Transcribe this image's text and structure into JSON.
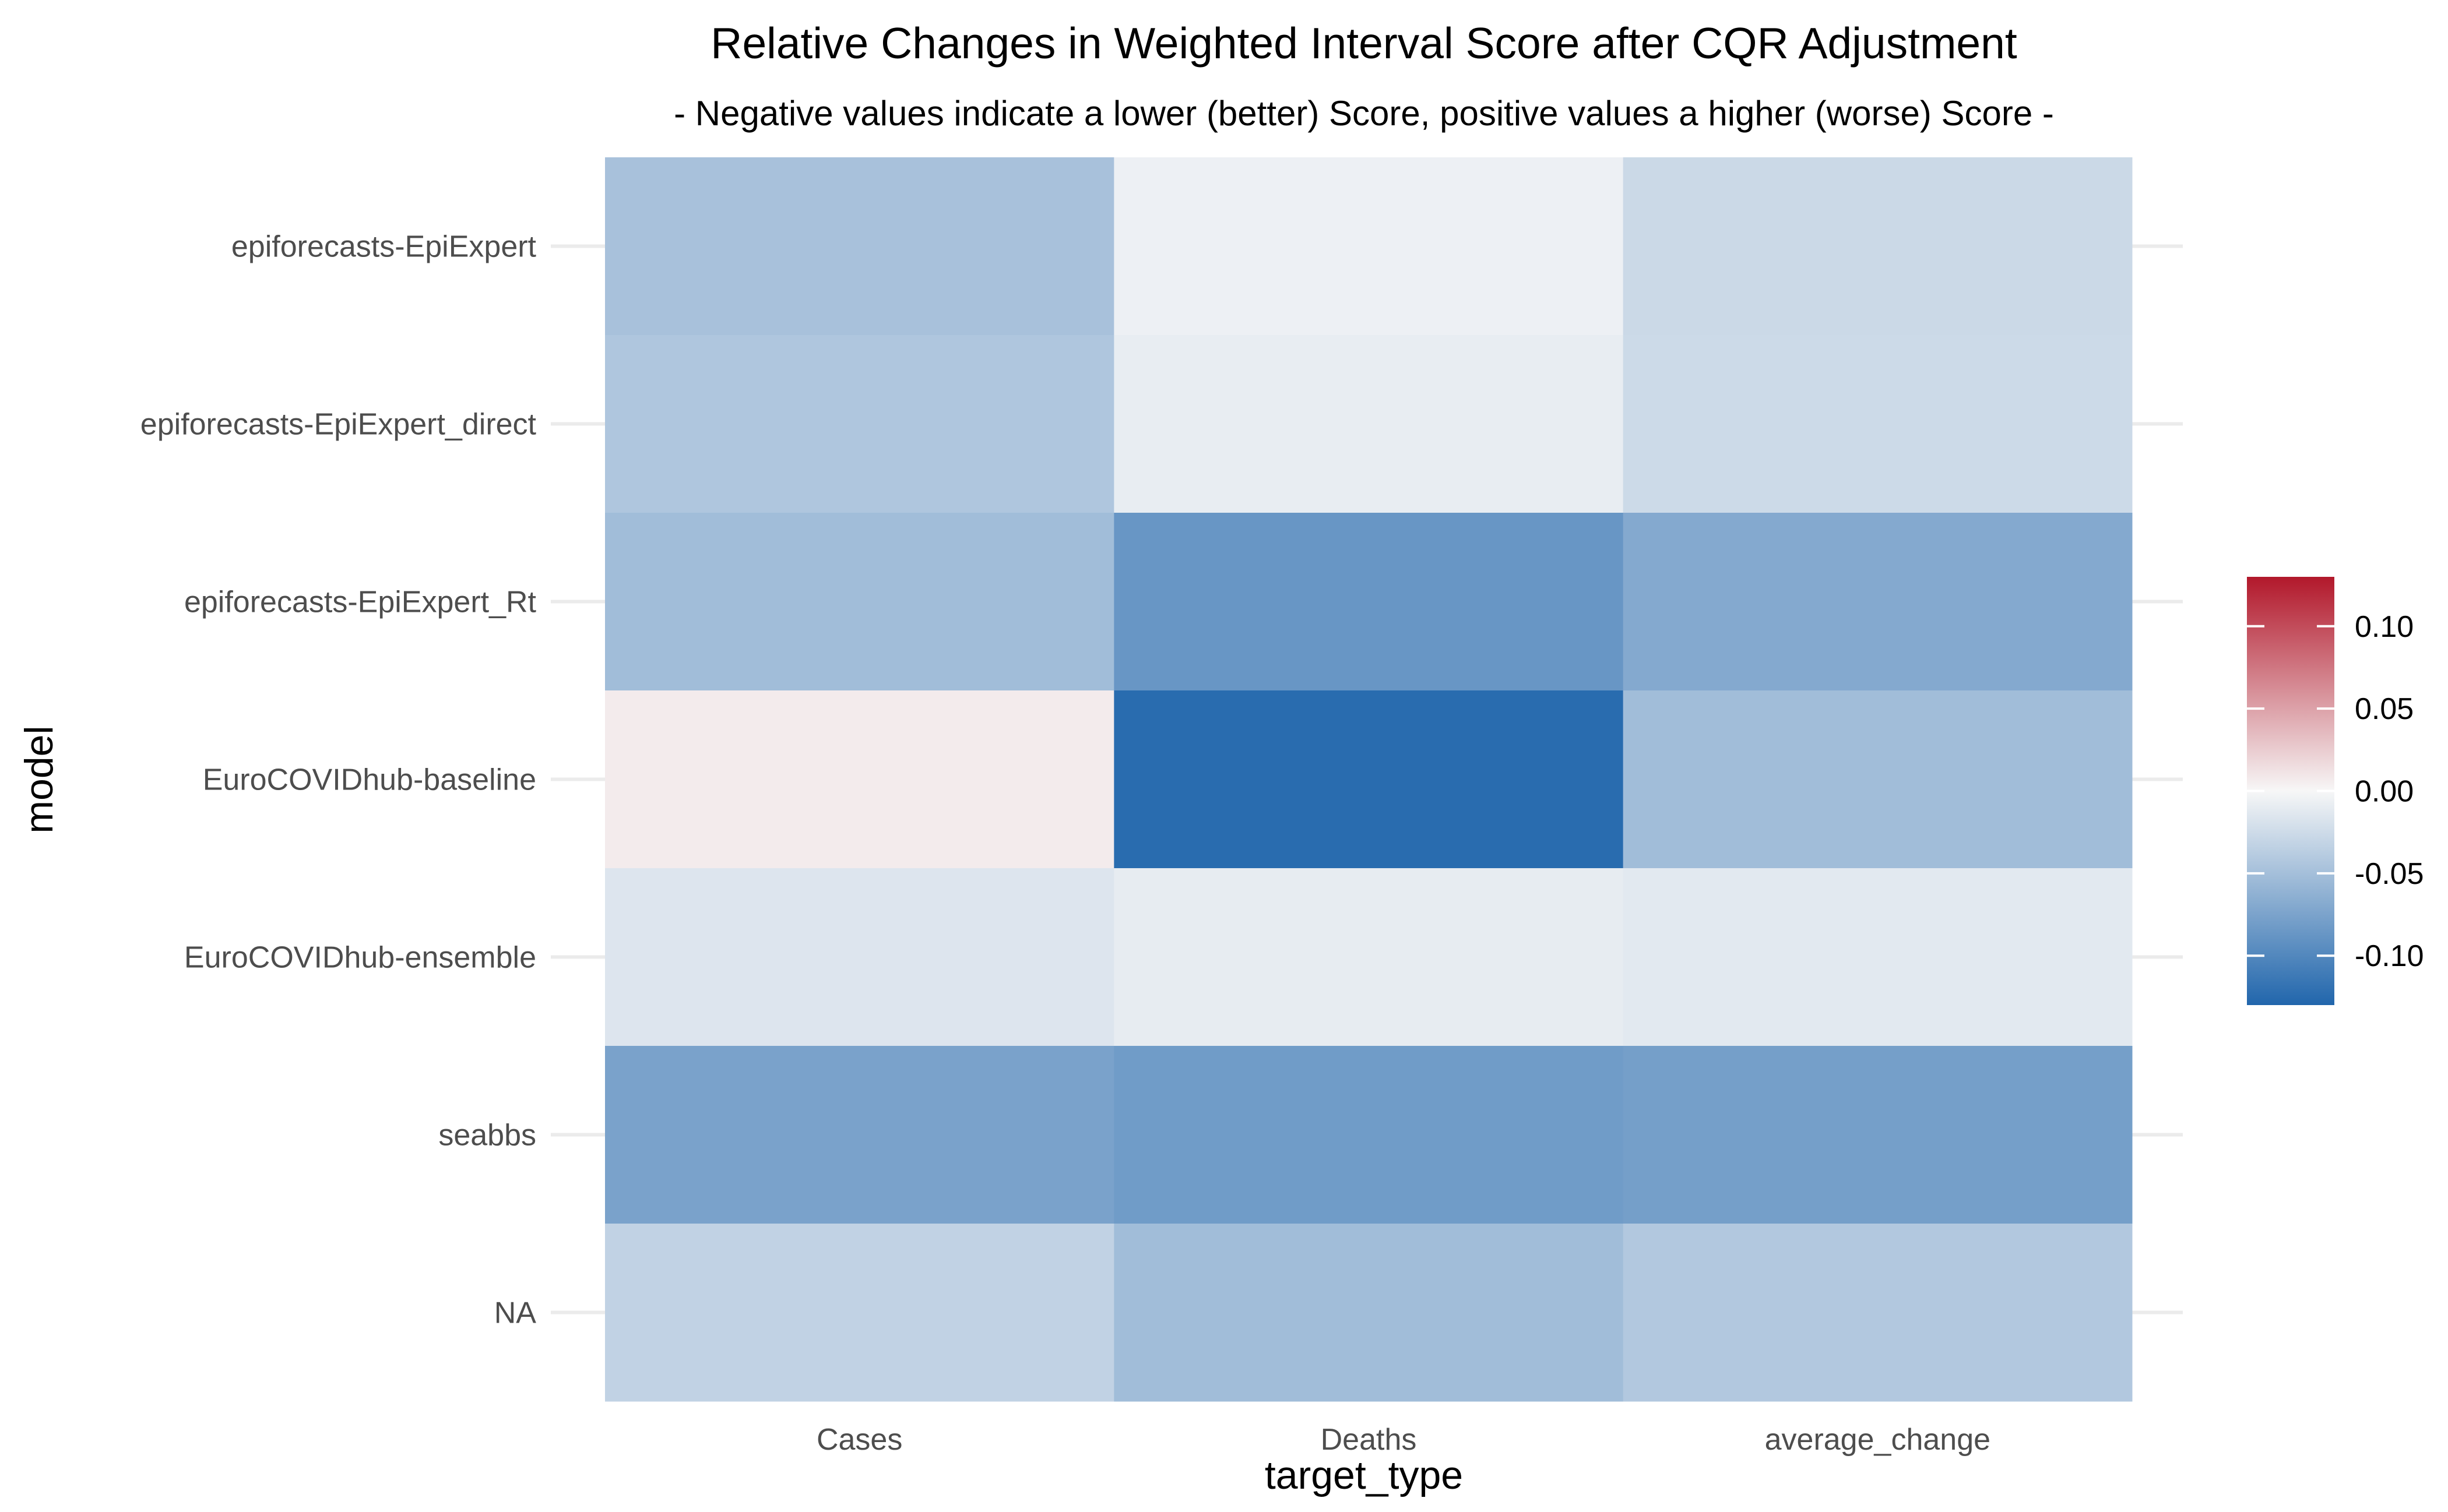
{
  "chart_data": {
    "type": "heatmap",
    "title": "Relative Changes in Weighted Interval Score after CQR Adjustment",
    "subtitle": "- Negative values indicate a lower (better) Score, positive values a higher (worse) Score -",
    "xlabel": "target_type",
    "ylabel": "model",
    "x": [
      "Cases",
      "Deaths",
      "average_change"
    ],
    "y": [
      "epiforecasts-EpiExpert",
      "epiforecasts-EpiExpert_direct",
      "epiforecasts-EpiExpert_Rt",
      "EuroCOVIDhub-baseline",
      "EuroCOVIDhub-ensemble",
      "seabbs",
      "NA"
    ],
    "values": [
      [
        -0.048,
        -0.006,
        -0.027
      ],
      [
        -0.044,
        -0.009,
        -0.026
      ],
      [
        -0.052,
        -0.087,
        -0.07
      ],
      [
        0.007,
        -0.125,
        -0.052
      ],
      [
        -0.016,
        -0.01,
        -0.013
      ],
      [
        -0.076,
        -0.082,
        -0.079
      ],
      [
        -0.033,
        -0.052,
        -0.042
      ]
    ],
    "legend": {
      "position": "right",
      "range": [
        -0.13,
        0.13
      ],
      "ticks": [
        0.1,
        0.05,
        0,
        -0.05,
        -0.1
      ],
      "tick_labels": [
        "0.10",
        "0.05",
        "0.00",
        "-0.05",
        "-0.10"
      ]
    },
    "colors": {
      "low": "#2166ac",
      "mid": "#f7f7f7",
      "high": "#b2182b"
    },
    "grid": true
  }
}
